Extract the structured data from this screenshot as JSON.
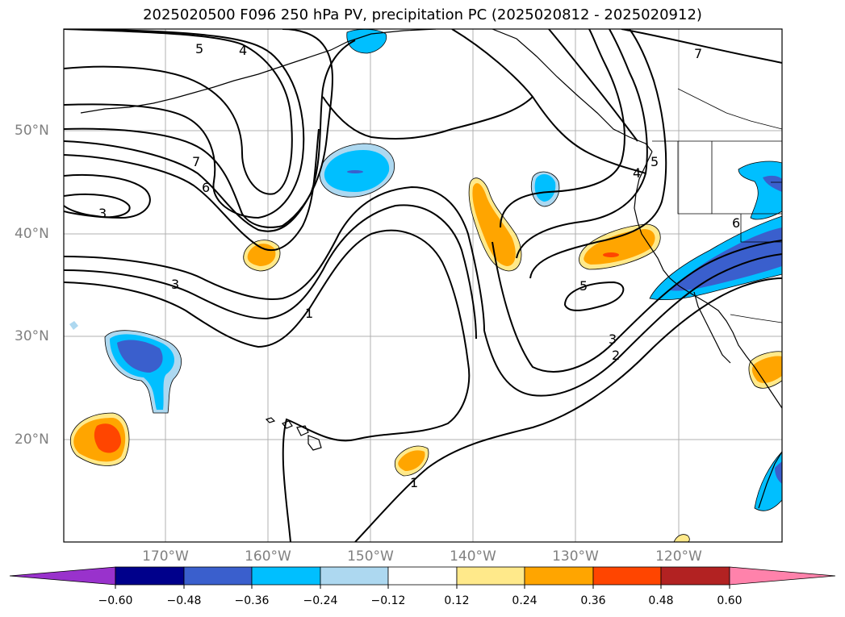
{
  "title": "2025020500 F096 250 hPa PV, precipitation PC (2025020812 - 2025020912)",
  "lat_labels": [
    "50°N",
    "40°N",
    "30°N",
    "20°N"
  ],
  "lon_labels": [
    "170°W",
    "160°W",
    "150°W",
    "140°W",
    "130°W",
    "120°W"
  ],
  "contour_labels": [
    "5",
    "4",
    "7",
    "6",
    "3",
    "3",
    "1",
    "1",
    "4",
    "5",
    "6",
    "5",
    "3",
    "2",
    "7"
  ],
  "colorbar": {
    "ticks": [
      "−0.60",
      "−0.48",
      "−0.36",
      "−0.24",
      "−0.12",
      "0.12",
      "0.24",
      "0.36",
      "0.48",
      "0.60"
    ],
    "colors": [
      "#9932cc",
      "#00008b",
      "#3a5fcd",
      "#00bfff",
      "#add8f0",
      "#ffffff",
      "#ffe98a",
      "#ffa500",
      "#ff4500",
      "#b22222",
      "#ff82ab"
    ]
  },
  "fill_colors": {
    "light_blue": "#add8f0",
    "blue": "#00bfff",
    "royal_blue": "#3a5fcd",
    "light_yellow": "#ffe98a",
    "orange": "#ffa500",
    "orange_red": "#ff4500"
  }
}
